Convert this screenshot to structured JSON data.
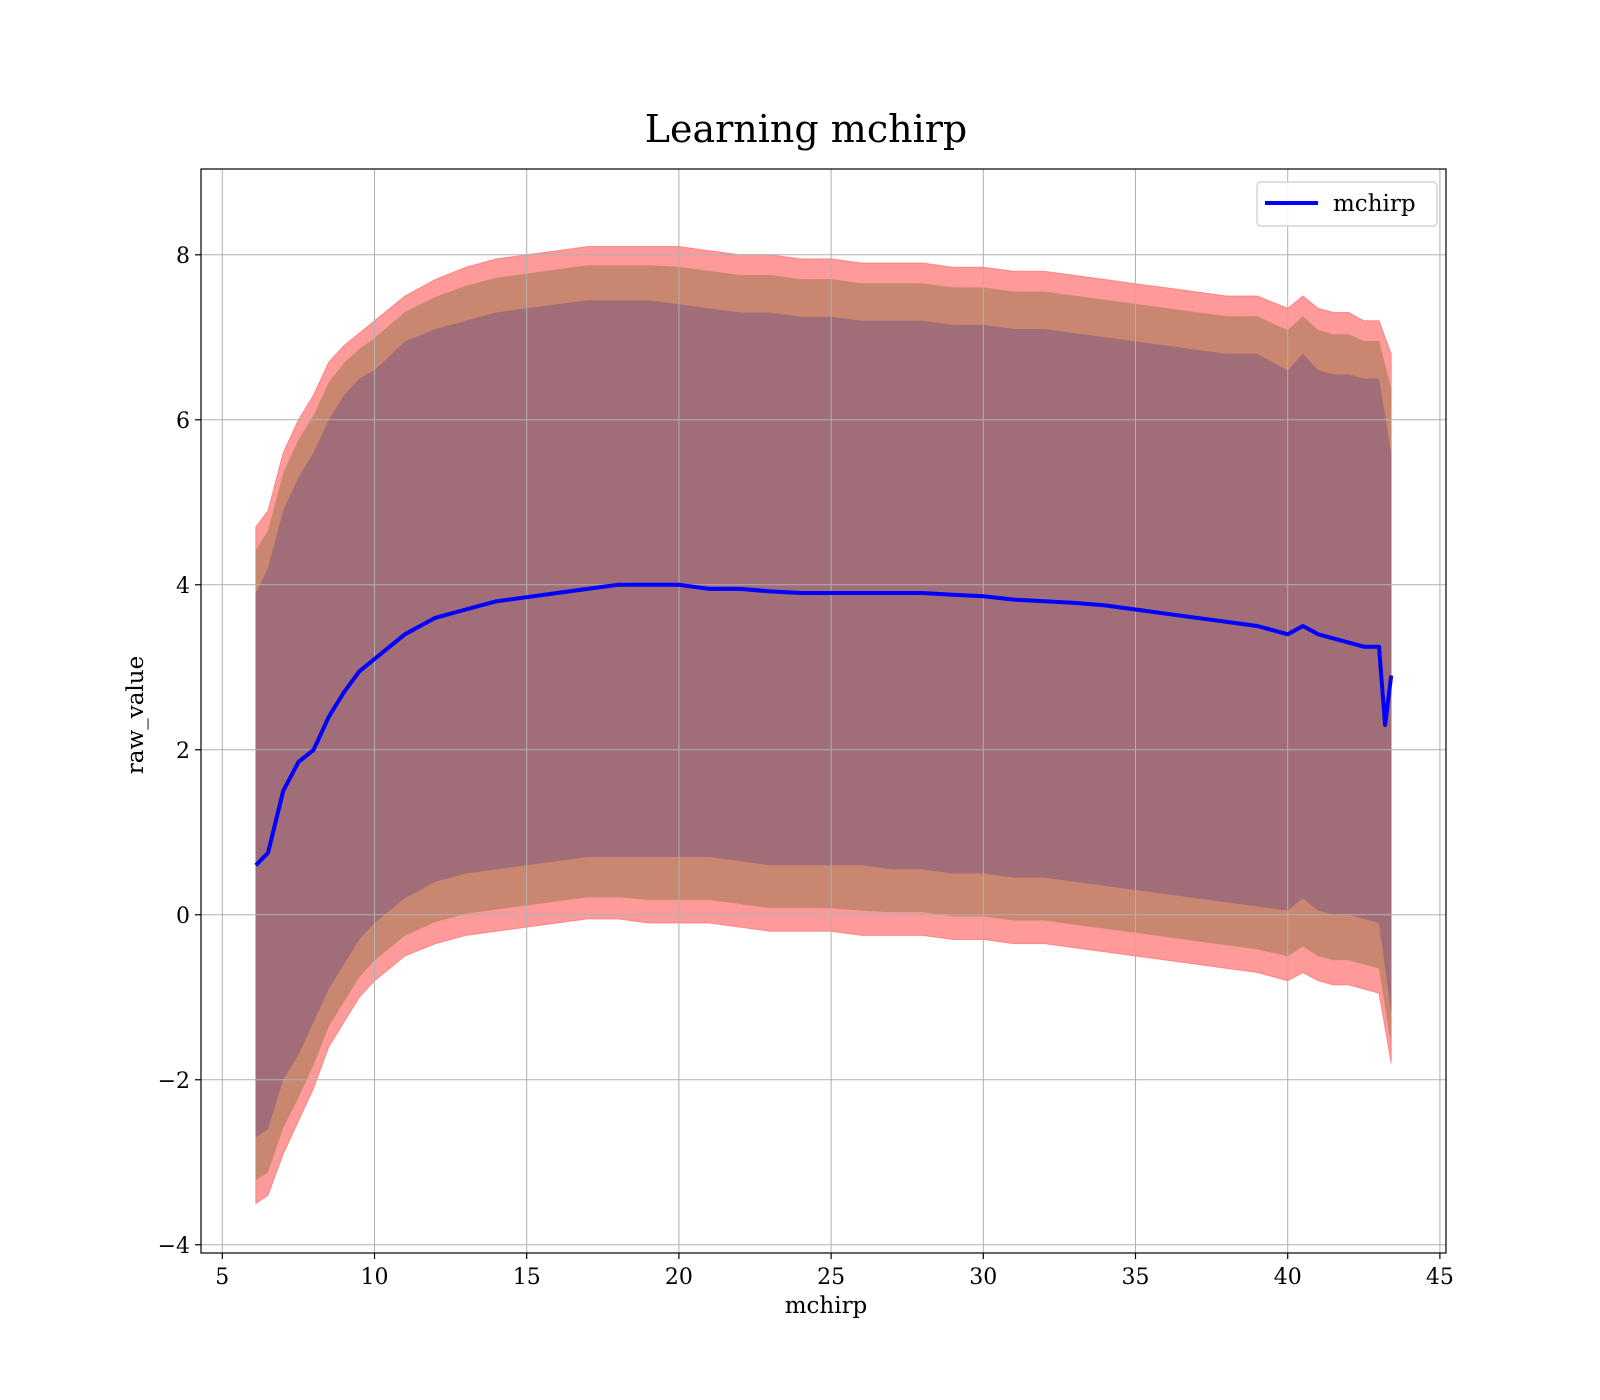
{
  "chart_data": {
    "type": "line",
    "title": "Learning mchirp",
    "xlabel": "mchirp",
    "ylabel": "raw_value",
    "xlim": [
      4.3,
      45.2
    ],
    "ylim": [
      -4.1,
      9.04
    ],
    "x_ticks": [
      5,
      10,
      15,
      20,
      25,
      30,
      35,
      40,
      45
    ],
    "x_tick_labels": [
      "5",
      "10",
      "15",
      "20",
      "25",
      "30",
      "35",
      "40",
      "45"
    ],
    "y_ticks": [
      -4,
      -2,
      0,
      2,
      4,
      6,
      8
    ],
    "y_tick_labels": [
      "−4",
      "−2",
      "0",
      "2",
      "4",
      "6",
      "8"
    ],
    "grid": true,
    "legend_position": "top-right",
    "series": [
      {
        "name": "mchirp",
        "color": "#0000ff",
        "x": [
          6.1,
          6.5,
          7.0,
          7.5,
          8.0,
          8.5,
          9.0,
          9.5,
          10.0,
          11,
          12,
          13,
          14,
          15,
          16,
          17,
          18,
          19,
          20,
          21,
          22,
          23,
          24,
          25,
          26,
          27,
          28,
          29,
          30,
          31,
          32,
          33,
          34,
          35,
          36,
          37,
          38,
          39,
          40,
          40.5,
          41,
          41.5,
          42,
          42.5,
          43.0,
          43.2,
          43.4
        ],
        "y": [
          0.6,
          0.75,
          1.5,
          1.85,
          2.0,
          2.4,
          2.7,
          2.95,
          3.1,
          3.4,
          3.6,
          3.7,
          3.8,
          3.85,
          3.9,
          3.95,
          4.0,
          4.0,
          4.0,
          3.95,
          3.95,
          3.92,
          3.9,
          3.9,
          3.9,
          3.9,
          3.9,
          3.88,
          3.86,
          3.82,
          3.8,
          3.78,
          3.75,
          3.7,
          3.65,
          3.6,
          3.55,
          3.5,
          3.4,
          3.5,
          3.4,
          3.35,
          3.3,
          3.25,
          3.25,
          2.3,
          2.9
        ]
      }
    ],
    "bands": {
      "x": [
        6.1,
        6.5,
        7.0,
        7.5,
        8.0,
        8.5,
        9.0,
        9.5,
        10.0,
        11,
        12,
        13,
        14,
        15,
        16,
        17,
        18,
        19,
        20,
        21,
        22,
        23,
        24,
        25,
        26,
        27,
        28,
        29,
        30,
        31,
        32,
        33,
        34,
        35,
        36,
        37,
        38,
        39,
        40,
        40.5,
        41,
        41.5,
        42,
        42.5,
        43.0,
        43.4
      ],
      "upper_2sigma": [
        4.7,
        4.9,
        5.6,
        6.0,
        6.3,
        6.7,
        6.9,
        7.05,
        7.2,
        7.5,
        7.7,
        7.85,
        7.95,
        8.0,
        8.05,
        8.1,
        8.1,
        8.1,
        8.1,
        8.05,
        8.0,
        8.0,
        7.95,
        7.95,
        7.9,
        7.9,
        7.9,
        7.85,
        7.85,
        7.8,
        7.8,
        7.75,
        7.7,
        7.65,
        7.6,
        7.55,
        7.5,
        7.5,
        7.35,
        7.5,
        7.35,
        7.3,
        7.3,
        7.2,
        7.2,
        6.8
      ],
      "upper_1sigma": [
        3.9,
        4.2,
        4.9,
        5.3,
        5.6,
        6.0,
        6.3,
        6.5,
        6.6,
        6.95,
        7.1,
        7.2,
        7.3,
        7.35,
        7.4,
        7.45,
        7.45,
        7.45,
        7.4,
        7.35,
        7.3,
        7.3,
        7.25,
        7.25,
        7.2,
        7.2,
        7.2,
        7.15,
        7.15,
        7.1,
        7.1,
        7.05,
        7.0,
        6.95,
        6.9,
        6.85,
        6.8,
        6.8,
        6.6,
        6.8,
        6.6,
        6.55,
        6.55,
        6.5,
        6.5,
        5.6
      ],
      "lower_1sigma": [
        -2.7,
        -2.6,
        -2.0,
        -1.7,
        -1.3,
        -0.9,
        -0.6,
        -0.3,
        -0.1,
        0.2,
        0.4,
        0.5,
        0.55,
        0.6,
        0.65,
        0.7,
        0.7,
        0.7,
        0.7,
        0.7,
        0.65,
        0.6,
        0.6,
        0.6,
        0.6,
        0.55,
        0.55,
        0.5,
        0.5,
        0.45,
        0.45,
        0.4,
        0.35,
        0.3,
        0.25,
        0.2,
        0.15,
        0.1,
        0.05,
        0.2,
        0.05,
        0.0,
        0.0,
        -0.05,
        -0.1,
        -1.2
      ],
      "lower_2sigma": [
        -3.5,
        -3.4,
        -2.9,
        -2.5,
        -2.1,
        -1.6,
        -1.3,
        -1.0,
        -0.8,
        -0.5,
        -0.35,
        -0.25,
        -0.2,
        -0.15,
        -0.1,
        -0.05,
        -0.05,
        -0.1,
        -0.1,
        -0.1,
        -0.15,
        -0.2,
        -0.2,
        -0.2,
        -0.25,
        -0.25,
        -0.25,
        -0.3,
        -0.3,
        -0.35,
        -0.35,
        -0.4,
        -0.45,
        -0.5,
        -0.55,
        -0.6,
        -0.65,
        -0.7,
        -0.8,
        -0.7,
        -0.8,
        -0.85,
        -0.85,
        -0.9,
        -0.95,
        -1.8
      ],
      "colors": {
        "outer": "#ff9a9a",
        "middle": "#c9876f",
        "inner": "#a16d78",
        "outer_edge": "#ff6060"
      }
    }
  }
}
